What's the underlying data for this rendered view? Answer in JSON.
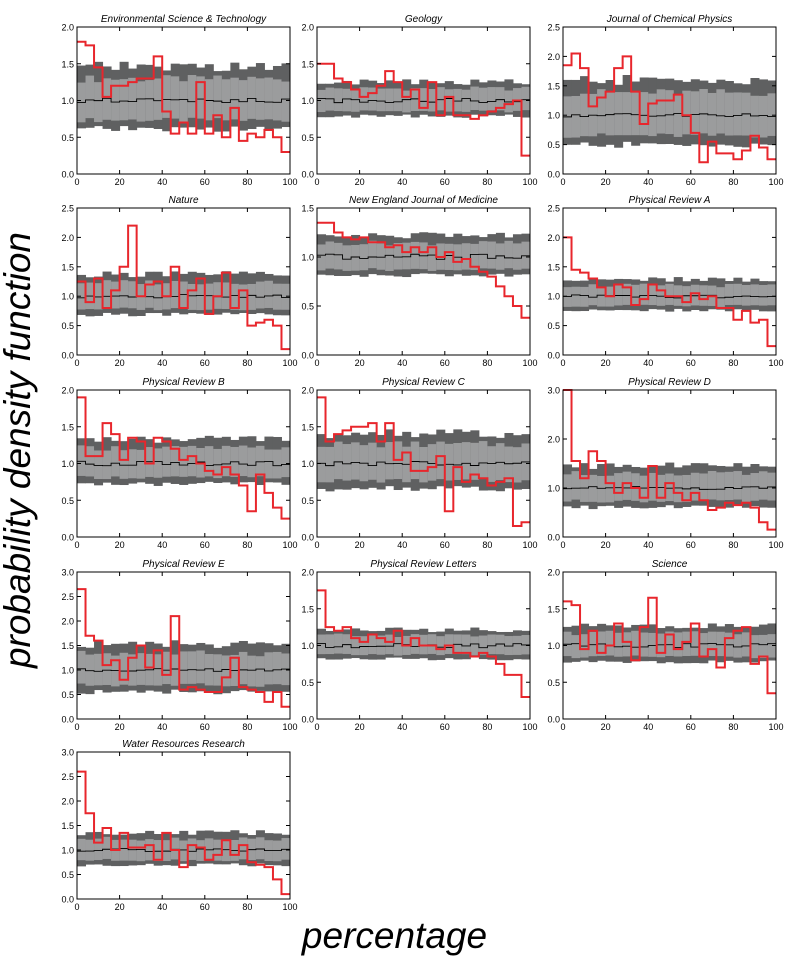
{
  "figure": {
    "xlabel": "percentage",
    "ylabel": "probability density function"
  },
  "chart_data": [
    {
      "type": "area",
      "title": "Environmental Science & Technology",
      "xlim": [
        0,
        100
      ],
      "ylim": [
        0,
        2.0
      ],
      "yticks": [
        0,
        0.5,
        1.0,
        1.5,
        2.0
      ],
      "xticks": [
        0,
        20,
        40,
        60,
        80,
        100
      ],
      "series": [
        {
          "values": [
            1.8,
            1.75,
            1.45,
            1.05,
            1.2,
            1.2,
            1.25,
            1.3,
            1.3,
            1.6,
            0.85,
            0.55,
            0.7,
            0.55,
            1.25,
            0.55,
            0.8,
            0.5,
            0.9,
            0.45,
            0.55,
            0.5,
            0.6,
            0.5,
            0.3
          ]
        }
      ]
    },
    {
      "type": "area",
      "title": "Geology",
      "xlim": [
        0,
        100
      ],
      "ylim": [
        0,
        2.0
      ],
      "yticks": [
        0,
        0.5,
        1.0,
        1.5,
        2.0
      ],
      "xticks": [
        0,
        20,
        40,
        60,
        80,
        100
      ],
      "series": [
        {
          "values": [
            1.5,
            1.5,
            1.3,
            1.25,
            1.15,
            1.05,
            1.1,
            1.2,
            1.4,
            1.25,
            1.05,
            1.15,
            0.9,
            1.25,
            0.8,
            1.05,
            0.8,
            0.8,
            0.75,
            0.8,
            0.85,
            0.9,
            0.95,
            1.0,
            0.25
          ]
        }
      ]
    },
    {
      "type": "area",
      "title": "Journal of Chemical Physics",
      "xlim": [
        0,
        100
      ],
      "ylim": [
        0,
        2.5
      ],
      "yticks": [
        0,
        0.5,
        1.0,
        1.5,
        2.0,
        2.5
      ],
      "xticks": [
        0,
        20,
        40,
        60,
        80,
        100
      ],
      "series": [
        {
          "values": [
            1.85,
            2.05,
            1.8,
            1.15,
            1.3,
            1.4,
            1.8,
            2.0,
            1.4,
            0.85,
            1.2,
            1.25,
            1.25,
            1.35,
            1.0,
            0.7,
            0.2,
            0.55,
            0.35,
            0.35,
            0.25,
            0.4,
            0.65,
            0.45,
            0.25
          ]
        }
      ]
    },
    {
      "type": "area",
      "title": "Nature",
      "xlim": [
        0,
        100
      ],
      "ylim": [
        0,
        2.5
      ],
      "yticks": [
        0,
        0.5,
        1.0,
        1.5,
        2.0,
        2.5
      ],
      "xticks": [
        0,
        20,
        40,
        60,
        80,
        100
      ],
      "series": [
        {
          "values": [
            1.25,
            0.9,
            1.3,
            0.8,
            1.1,
            1.5,
            2.2,
            1.0,
            1.2,
            1.25,
            1.0,
            1.5,
            0.8,
            1.1,
            1.3,
            0.7,
            1.0,
            1.4,
            0.8,
            1.1,
            0.5,
            0.55,
            0.6,
            0.5,
            0.1
          ]
        }
      ]
    },
    {
      "type": "area",
      "title": "New England Journal of Medicine",
      "xlim": [
        0,
        100
      ],
      "ylim": [
        0,
        1.5
      ],
      "yticks": [
        0,
        0.5,
        1.0,
        1.5
      ],
      "xticks": [
        0,
        20,
        40,
        60,
        80,
        100
      ],
      "series": [
        {
          "values": [
            1.35,
            1.35,
            1.25,
            1.2,
            1.18,
            1.2,
            1.15,
            1.15,
            1.1,
            1.12,
            1.05,
            1.1,
            1.05,
            1.1,
            1.0,
            1.05,
            0.95,
            0.98,
            0.9,
            0.85,
            0.8,
            0.7,
            0.6,
            0.5,
            0.38
          ]
        }
      ]
    },
    {
      "type": "area",
      "title": "Physical Review A",
      "xlim": [
        0,
        100
      ],
      "ylim": [
        0,
        2.5
      ],
      "yticks": [
        0,
        0.5,
        1.0,
        1.5,
        2.0,
        2.5
      ],
      "xticks": [
        0,
        20,
        40,
        60,
        80,
        100
      ],
      "series": [
        {
          "values": [
            2.0,
            1.45,
            1.4,
            1.3,
            1.15,
            1.0,
            1.2,
            1.15,
            0.85,
            0.95,
            1.2,
            1.1,
            1.0,
            1.0,
            0.9,
            1.05,
            0.95,
            1.0,
            0.8,
            0.8,
            0.6,
            0.75,
            0.55,
            0.6,
            0.15
          ]
        }
      ]
    },
    {
      "type": "area",
      "title": "Physical Review B",
      "xlim": [
        0,
        100
      ],
      "ylim": [
        0,
        2.0
      ],
      "yticks": [
        0,
        0.5,
        1.0,
        1.5,
        2.0
      ],
      "xticks": [
        0,
        20,
        40,
        60,
        80,
        100
      ],
      "series": [
        {
          "values": [
            1.9,
            1.1,
            1.1,
            1.55,
            1.4,
            1.05,
            1.35,
            1.3,
            1.0,
            1.35,
            1.3,
            1.2,
            1.05,
            1.1,
            1.0,
            0.9,
            0.85,
            0.95,
            0.85,
            0.7,
            0.35,
            0.85,
            0.6,
            0.4,
            0.25
          ]
        }
      ]
    },
    {
      "type": "area",
      "title": "Physical Review C",
      "xlim": [
        0,
        100
      ],
      "ylim": [
        0,
        2.0
      ],
      "yticks": [
        0,
        0.5,
        1.0,
        1.5,
        2.0
      ],
      "xticks": [
        0,
        20,
        40,
        60,
        80,
        100
      ],
      "series": [
        {
          "values": [
            1.9,
            1.3,
            1.4,
            1.45,
            1.5,
            1.5,
            1.55,
            1.3,
            1.55,
            1.05,
            1.15,
            0.9,
            0.9,
            0.95,
            1.1,
            0.35,
            0.95,
            0.75,
            0.85,
            0.8,
            0.7,
            0.75,
            0.8,
            0.15,
            0.2
          ]
        }
      ]
    },
    {
      "type": "area",
      "title": "Physical Review D",
      "xlim": [
        0,
        100
      ],
      "ylim": [
        0,
        3.0
      ],
      "yticks": [
        0,
        1.0,
        2.0,
        3.0
      ],
      "xticks": [
        0,
        20,
        40,
        60,
        80,
        100
      ],
      "series": [
        {
          "values": [
            3.1,
            1.55,
            1.2,
            1.75,
            1.55,
            1.1,
            0.9,
            1.1,
            1.0,
            0.8,
            1.45,
            0.8,
            1.1,
            0.9,
            0.75,
            0.9,
            0.75,
            0.55,
            0.6,
            0.7,
            0.65,
            0.7,
            0.6,
            0.3,
            0.15
          ]
        }
      ]
    },
    {
      "type": "area",
      "title": "Physical Review E",
      "xlim": [
        0,
        100
      ],
      "ylim": [
        0,
        3.0
      ],
      "yticks": [
        0,
        0.5,
        1.0,
        1.5,
        2.0,
        2.5,
        3.0
      ],
      "xticks": [
        0,
        20,
        40,
        60,
        80,
        100
      ],
      "series": [
        {
          "values": [
            2.65,
            1.7,
            1.6,
            1.1,
            1.2,
            0.8,
            1.25,
            1.5,
            1.05,
            1.4,
            0.9,
            2.1,
            0.6,
            0.65,
            0.6,
            0.55,
            0.55,
            0.85,
            1.25,
            0.65,
            0.6,
            0.55,
            0.35,
            0.55,
            0.25
          ]
        }
      ]
    },
    {
      "type": "area",
      "title": "Physical Review Letters",
      "xlim": [
        0,
        100
      ],
      "ylim": [
        0,
        2.0
      ],
      "yticks": [
        0,
        0.5,
        1.0,
        1.5,
        2.0
      ],
      "xticks": [
        0,
        20,
        40,
        60,
        80,
        100
      ],
      "series": [
        {
          "values": [
            1.75,
            1.25,
            1.2,
            1.25,
            1.1,
            1.05,
            1.15,
            1.1,
            1.05,
            1.2,
            1.0,
            1.1,
            1.0,
            1.0,
            0.95,
            1.0,
            0.9,
            0.9,
            0.85,
            0.9,
            0.85,
            0.75,
            0.6,
            0.6,
            0.3
          ]
        }
      ]
    },
    {
      "type": "area",
      "title": "Science",
      "xlim": [
        0,
        100
      ],
      "ylim": [
        0,
        2.0
      ],
      "yticks": [
        0,
        0.5,
        1.0,
        1.5,
        2.0
      ],
      "xticks": [
        0,
        20,
        40,
        60,
        80,
        100
      ],
      "series": [
        {
          "values": [
            1.6,
            1.55,
            0.95,
            1.2,
            0.9,
            1.0,
            1.3,
            1.05,
            0.8,
            1.25,
            1.65,
            0.9,
            1.15,
            0.95,
            1.05,
            1.3,
            0.85,
            0.95,
            0.7,
            1.1,
            1.2,
            1.25,
            0.75,
            0.85,
            0.35
          ]
        }
      ]
    },
    {
      "type": "area",
      "title": "Water Resources Research",
      "xlim": [
        0,
        100
      ],
      "ylim": [
        0,
        3.0
      ],
      "yticks": [
        0,
        0.5,
        1.0,
        1.5,
        2.0,
        2.5,
        3.0
      ],
      "xticks": [
        0,
        20,
        40,
        60,
        80,
        100
      ],
      "series": [
        {
          "values": [
            2.6,
            1.75,
            1.15,
            1.45,
            1.0,
            1.35,
            1.05,
            1.05,
            1.1,
            0.8,
            1.35,
            1.0,
            0.65,
            1.1,
            1.05,
            0.8,
            0.9,
            1.2,
            0.9,
            1.1,
            0.75,
            0.7,
            0.65,
            0.4,
            0.1
          ]
        }
      ]
    }
  ],
  "style": {
    "dark_band": "#5f6061",
    "light_band": "#9b9c9d",
    "median_line": "#000000",
    "observed_line": "#e8262c",
    "axis": "#000000"
  }
}
